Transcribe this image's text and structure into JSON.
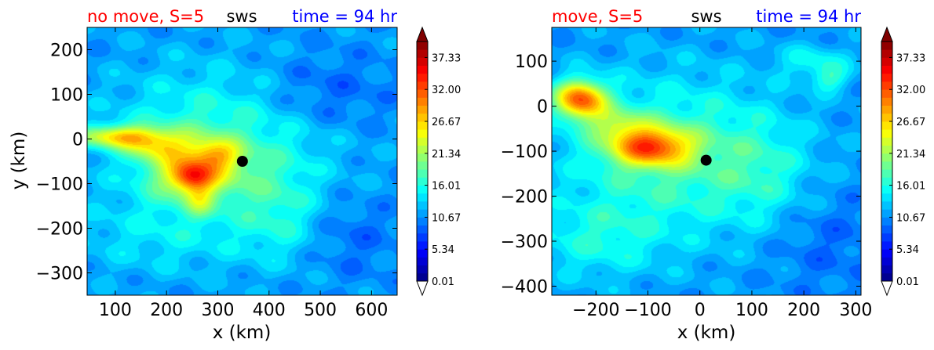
{
  "chart_data": [
    {
      "type": "contour",
      "title_left": "no move, S=5",
      "title_center": "sws",
      "title_right": "time = 94 hr",
      "title_left_color": "#ff0000",
      "title_center_color": "#000000",
      "title_right_color": "#0000ff",
      "xlabel": "x (km)",
      "ylabel": "y (km)",
      "xlim": [
        45,
        650
      ],
      "ylim": [
        -350,
        250
      ],
      "xticks": [
        100,
        200,
        300,
        400,
        500,
        600
      ],
      "yticks": [
        200,
        100,
        0,
        -100,
        -200,
        -300
      ],
      "xtick_labels": [
        "100",
        "200",
        "300",
        "400",
        "500",
        "600"
      ],
      "ytick_labels": [
        "200",
        "100",
        "0",
        "−100",
        "−200",
        "−300"
      ],
      "background_value": 11,
      "center_marker": {
        "x": 348,
        "y": -50
      },
      "features": [
        {
          "x": 255,
          "y": -70,
          "sx": 65,
          "sy": 50,
          "v": 10
        },
        {
          "x": 250,
          "y": -85,
          "sx": 28,
          "sy": 22,
          "v": 10
        },
        {
          "x": 300,
          "y": -35,
          "sx": 32,
          "sy": 22,
          "v": 6
        },
        {
          "x": 110,
          "y": 5,
          "sx": 60,
          "sy": 18,
          "v": 13
        },
        {
          "x": 180,
          "y": -20,
          "sx": 40,
          "sy": 20,
          "v": 6
        },
        {
          "x": 265,
          "y": -140,
          "sx": 20,
          "sy": 25,
          "v": 5
        },
        {
          "x": 300,
          "y": 0,
          "sx": 150,
          "sy": 110,
          "v": 6
        },
        {
          "x": 200,
          "y": -220,
          "sx": 140,
          "sy": 60,
          "v": 3
        },
        {
          "x": 420,
          "y": -160,
          "sx": 55,
          "sy": 80,
          "v": 4
        },
        {
          "x": 500,
          "y": 100,
          "sx": 90,
          "sy": 60,
          "v": -3
        },
        {
          "x": 560,
          "y": -220,
          "sx": 60,
          "sy": 60,
          "v": -2
        }
      ]
    },
    {
      "type": "contour",
      "title_left": "move, S=5",
      "title_center": "sws",
      "title_right": "time = 94 hr",
      "title_left_color": "#ff0000",
      "title_center_color": "#000000",
      "title_right_color": "#0000ff",
      "xlabel": "x (km)",
      "ylabel": "",
      "xlim": [
        -285,
        310
      ],
      "ylim": [
        -420,
        175
      ],
      "xticks": [
        -200,
        -100,
        0,
        100,
        200,
        300
      ],
      "yticks": [
        100,
        0,
        -100,
        -200,
        -300,
        -400
      ],
      "xtick_labels": [
        "−200",
        "−100",
        "0",
        "100",
        "200",
        "300"
      ],
      "ytick_labels": [
        "100",
        "0",
        "−100",
        "−200",
        "−300",
        "−400"
      ],
      "background_value": 11,
      "center_marker": {
        "x": 12,
        "y": -120
      },
      "features": [
        {
          "x": -230,
          "y": 15,
          "sx": 35,
          "sy": 30,
          "v": 19
        },
        {
          "x": -95,
          "y": -90,
          "sx": 55,
          "sy": 30,
          "v": 16
        },
        {
          "x": -160,
          "y": -40,
          "sx": 40,
          "sy": 25,
          "v": 6
        },
        {
          "x": -50,
          "y": -110,
          "sx": 150,
          "sy": 120,
          "v": 7
        },
        {
          "x": -200,
          "y": -300,
          "sx": 90,
          "sy": 60,
          "v": 4
        },
        {
          "x": 220,
          "y": 100,
          "sx": 50,
          "sy": 25,
          "v": 4
        },
        {
          "x": 250,
          "y": 60,
          "sx": 25,
          "sy": 20,
          "v": 5
        },
        {
          "x": 120,
          "y": -150,
          "sx": 60,
          "sy": 80,
          "v": 3
        },
        {
          "x": 250,
          "y": -300,
          "sx": 80,
          "sy": 80,
          "v": -2
        }
      ]
    }
  ],
  "colorbar": {
    "vmin": 0.01,
    "vmax": 40,
    "levels": 30,
    "tick_values": [
      0.01,
      5.34,
      10.67,
      16.01,
      21.34,
      26.67,
      32.0,
      37.33
    ],
    "tick_labels": [
      "0.01",
      "5.34",
      "10.67",
      "16.01",
      "21.34",
      "26.67",
      "32.00",
      "37.33"
    ],
    "extend": "both",
    "colormap": "jet"
  }
}
